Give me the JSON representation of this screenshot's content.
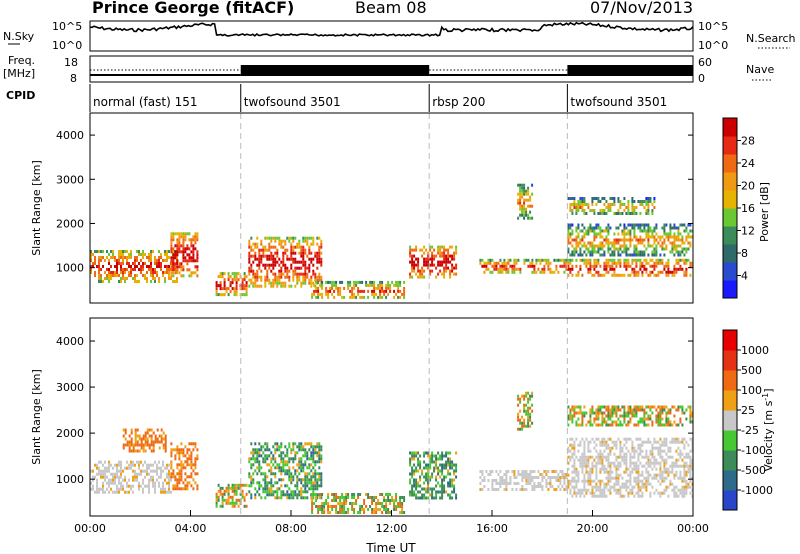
{
  "header": {
    "station": "Prince George (fitACF)",
    "beam": "Beam 08",
    "date": "07/Nov/2013"
  },
  "top_panels": {
    "nsky_label": "N.Sky",
    "nsky_ticks": [
      "10^5",
      "10^0"
    ],
    "nsearch_label": "N.Search",
    "nsearch_ticks": [
      "10^5",
      "10^0"
    ],
    "freq_label_1": "Freq.",
    "freq_label_2": "[MHz]",
    "freq_ticks": [
      "18",
      "8"
    ],
    "nave_label": "Nave",
    "nave_ticks": [
      "60",
      "0"
    ],
    "cpid_label": "CPID",
    "cpid_segments": [
      {
        "label": "normal (fast) 151",
        "start_hour": 0,
        "end_hour": 6
      },
      {
        "label": "twofsound 3501",
        "start_hour": 6,
        "end_hour": 13.5
      },
      {
        "label": "rbsp 200",
        "start_hour": 13.5,
        "end_hour": 19
      },
      {
        "label": "twofsound 3501",
        "start_hour": 19,
        "end_hour": 24
      }
    ]
  },
  "chart_data": [
    {
      "type": "heatmap",
      "ylabel": "Slant Range [km]",
      "xlim": [
        0,
        24
      ],
      "ylim": [
        200,
        4500
      ],
      "yticks": [
        "1000",
        "2000",
        "3000",
        "4000"
      ],
      "colorbar": {
        "label": "Power [dB]",
        "ticks": [
          "4",
          "8",
          "12",
          "16",
          "20",
          "24",
          "28"
        ],
        "colors": [
          "#1a1aff",
          "#2a4ad0",
          "#2e6a6a",
          "#3c8c5a",
          "#6ac832",
          "#e6b400",
          "#f09a14",
          "#f06a14",
          "#e62a14",
          "#cc0000"
        ]
      },
      "regions": [
        {
          "t0": 0.0,
          "t1": 3.5,
          "r0": 700,
          "r1": 1400,
          "level": 0.75
        },
        {
          "t0": 3.2,
          "t1": 4.3,
          "r0": 800,
          "r1": 1800,
          "level": 0.95
        },
        {
          "t0": 5.0,
          "t1": 6.2,
          "r0": 400,
          "r1": 900,
          "level": 0.8
        },
        {
          "t0": 6.3,
          "t1": 9.2,
          "r0": 600,
          "r1": 1700,
          "level": 0.9
        },
        {
          "t0": 8.8,
          "t1": 12.5,
          "r0": 300,
          "r1": 700,
          "level": 0.55
        },
        {
          "t0": 12.7,
          "t1": 14.6,
          "r0": 800,
          "r1": 1500,
          "level": 0.95
        },
        {
          "t0": 15.5,
          "t1": 19.0,
          "r0": 900,
          "r1": 1200,
          "level": 0.65
        },
        {
          "t0": 19.0,
          "t1": 24.0,
          "r0": 800,
          "r1": 1200,
          "level": 0.8
        },
        {
          "t0": 19.0,
          "t1": 24.0,
          "r0": 1300,
          "r1": 2000,
          "level": 0.35
        },
        {
          "t0": 17.0,
          "t1": 17.6,
          "r0": 2100,
          "r1": 2900,
          "level": 0.4
        },
        {
          "t0": 19.0,
          "t1": 22.5,
          "r0": 2200,
          "r1": 2600,
          "level": 0.3
        }
      ]
    },
    {
      "type": "heatmap",
      "xlabel": "Time UT",
      "ylabel": "Slant Range [km]",
      "xlim": [
        0,
        24
      ],
      "ylim": [
        200,
        4500
      ],
      "xticks": [
        "00:00",
        "04:00",
        "08:00",
        "12:00",
        "16:00",
        "20:00",
        "00:00"
      ],
      "yticks": [
        "1000",
        "2000",
        "3000",
        "4000"
      ],
      "colorbar": {
        "label": "Velocity [m s^-1]",
        "ticks": [
          "1000",
          "500",
          "100",
          "25",
          "-25",
          "-100",
          "-500",
          "-1000"
        ],
        "colors": [
          "#2a46c8",
          "#2e6a8a",
          "#3c8c5a",
          "#46c832",
          "#c8c8c8",
          "#f0a014",
          "#f06a14",
          "#e63214",
          "#e60000"
        ]
      },
      "regions": [
        {
          "t0": 0.0,
          "t1": 3.2,
          "r0": 700,
          "r1": 1400,
          "vel": "grey"
        },
        {
          "t0": 3.2,
          "t1": 4.3,
          "r0": 800,
          "r1": 1800,
          "vel": "orange"
        },
        {
          "t0": 1.3,
          "t1": 3.0,
          "r0": 1600,
          "r1": 2100,
          "vel": "orange"
        },
        {
          "t0": 5.0,
          "t1": 6.2,
          "r0": 400,
          "r1": 900,
          "vel": "mixed"
        },
        {
          "t0": 6.3,
          "t1": 9.2,
          "r0": 600,
          "r1": 1800,
          "vel": "green"
        },
        {
          "t0": 8.8,
          "t1": 12.5,
          "r0": 300,
          "r1": 700,
          "vel": "mixed"
        },
        {
          "t0": 12.7,
          "t1": 14.6,
          "r0": 600,
          "r1": 1600,
          "vel": "green"
        },
        {
          "t0": 15.5,
          "t1": 19.0,
          "r0": 800,
          "r1": 1200,
          "vel": "grey"
        },
        {
          "t0": 19.0,
          "t1": 24.0,
          "r0": 600,
          "r1": 1900,
          "vel": "grey"
        },
        {
          "t0": 19.0,
          "t1": 24.0,
          "r0": 2200,
          "r1": 2600,
          "vel": "mixed"
        },
        {
          "t0": 17.0,
          "t1": 17.6,
          "r0": 2100,
          "r1": 2900,
          "vel": "mixed"
        }
      ]
    }
  ]
}
